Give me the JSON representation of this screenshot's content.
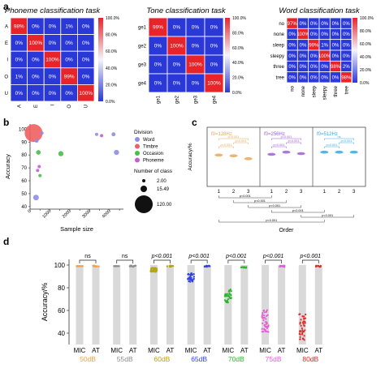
{
  "panel_labels": {
    "a": "a",
    "b": "b",
    "c": "c",
    "d": "d"
  },
  "chart_data": [
    {
      "id": "phoneme",
      "type": "heatmap",
      "title": "Phoneme classification task",
      "row_labels": [
        "A",
        "E",
        "I",
        "O",
        "U"
      ],
      "col_labels": [
        "A",
        "E",
        "I",
        "O",
        "U"
      ],
      "values": [
        [
          "98%",
          "0%",
          "0%",
          "1%",
          "0%"
        ],
        [
          "0%",
          "100%",
          "0%",
          "0%",
          "0%"
        ],
        [
          "0%",
          "0%",
          "100%",
          "0%",
          "0%"
        ],
        [
          "1%",
          "0%",
          "0%",
          "99%",
          "0%"
        ],
        [
          "0%",
          "0%",
          "0%",
          "0%",
          "100%"
        ]
      ],
      "diagonal": [
        98,
        100,
        100,
        99,
        100
      ],
      "colorbar": [
        "100.0%",
        "80.0%",
        "60.0%",
        "40.0%",
        "20.0%",
        "0.0%"
      ],
      "colors": {
        "high": "#e8232a",
        "low": "#2b38d8",
        "grid": "#ffffff"
      }
    },
    {
      "id": "tone",
      "type": "heatmap",
      "title": "Tone classification task",
      "row_labels": [
        "ge1",
        "ge2",
        "ge3",
        "ge4"
      ],
      "col_labels": [
        "ge1",
        "ge2",
        "ge3",
        "ge4"
      ],
      "values": [
        [
          "99%",
          "0%",
          "0%",
          "0%"
        ],
        [
          "0%",
          "100%",
          "0%",
          "0%"
        ],
        [
          "0%",
          "0%",
          "100%",
          "0%"
        ],
        [
          "0%",
          "0%",
          "0%",
          "100%"
        ]
      ],
      "diagonal": [
        99,
        100,
        100,
        100
      ],
      "colorbar": [
        "100.0%",
        "80.0%",
        "60.0%",
        "40.0%",
        "20.0%",
        "0.0%"
      ],
      "colors": {
        "high": "#e8232a",
        "low": "#2b38d8",
        "grid": "#ffffff"
      }
    },
    {
      "id": "word",
      "type": "heatmap",
      "title": "Word classification task",
      "row_labels": [
        "no",
        "none",
        "sleep",
        "sleepy",
        "three",
        "tree"
      ],
      "col_labels": [
        "no",
        "none",
        "sleep",
        "sleepy",
        "three",
        "tree"
      ],
      "values": [
        [
          "97%",
          "0%",
          "0%",
          "0%",
          "0%",
          "0%"
        ],
        [
          "0%",
          "100%",
          "0%",
          "0%",
          "0%",
          "0%"
        ],
        [
          "0%",
          "0%",
          "99%",
          "1%",
          "0%",
          "0%"
        ],
        [
          "0%",
          "0%",
          "0%",
          "100%",
          "0%",
          "0%"
        ],
        [
          "0%",
          "0%",
          "0%",
          "0%",
          "98%",
          "2%"
        ],
        [
          "0%",
          "0%",
          "0%",
          "0%",
          "0%",
          "98%"
        ]
      ],
      "diagonal": [
        97,
        100,
        99,
        100,
        98,
        98
      ],
      "colorbar": [
        "100.0%",
        "80.0%",
        "60.0%",
        "40.0%",
        "20.0%",
        "0.0%"
      ],
      "colors": {
        "high": "#e8232a",
        "low": "#2b38d8",
        "grid": "#ffffff"
      }
    },
    {
      "id": "bubble",
      "type": "scatter",
      "xlabel": "Sample size",
      "ylabel": "Accuracy",
      "xticks": [
        "0",
        "500",
        "1000",
        "1500",
        "2000",
        "2500",
        "3000",
        "3500",
        "4000",
        "4500"
      ],
      "yticks": [
        "40",
        "50",
        "60",
        "70",
        "80",
        "90",
        "100"
      ],
      "xlim": [
        0,
        4700
      ],
      "ylim": [
        38,
        104
      ],
      "legend_title": "Division",
      "legend": [
        {
          "name": "Word",
          "color": "#8d8ee8"
        },
        {
          "name": "Timbre",
          "color": "#f05f5f"
        },
        {
          "name": "Occasion",
          "color": "#4bbd4b"
        },
        {
          "name": "Phoneme",
          "color": "#c15fd3"
        }
      ],
      "size_legend_title": "Number of class",
      "size_legend": [
        "2.00",
        "15.49",
        "120.00"
      ],
      "points": [
        {
          "x": 180,
          "y": 97,
          "size": 120,
          "color": "#f05f5f"
        },
        {
          "x": 600,
          "y": 97,
          "size": 4,
          "color": "#8d8ee8"
        },
        {
          "x": 330,
          "y": 91,
          "size": 6,
          "color": "#8d8ee8"
        },
        {
          "x": 420,
          "y": 82,
          "size": 8,
          "color": "#4bbd4b"
        },
        {
          "x": 1550,
          "y": 81,
          "size": 10,
          "color": "#4bbd4b"
        },
        {
          "x": 460,
          "y": 71,
          "size": 4,
          "color": "#c15fd3"
        },
        {
          "x": 380,
          "y": 68,
          "size": 3,
          "color": "#c15fd3"
        },
        {
          "x": 500,
          "y": 64,
          "size": 3,
          "color": "#4bbd4b"
        },
        {
          "x": 3350,
          "y": 96,
          "size": 4,
          "color": "#8d8ee8"
        },
        {
          "x": 3600,
          "y": 95,
          "size": 3,
          "color": "#c15fd3"
        },
        {
          "x": 4200,
          "y": 96,
          "size": 6,
          "color": "#8d8ee8"
        },
        {
          "x": 4350,
          "y": 82,
          "size": 10,
          "color": "#8d8ee8"
        },
        {
          "x": 300,
          "y": 47,
          "size": 12,
          "color": "#8d8ee8"
        }
      ]
    },
    {
      "id": "order",
      "type": "scatter",
      "xlabel": "Order",
      "ylabel": "Accuracy/%",
      "groups": [
        {
          "label": "f0=128Hz",
          "sub": "0",
          "color": "#e8a75a",
          "values": [
            93,
            92,
            88
          ],
          "brackets": [
            "p<0.001",
            "p<0.001",
            "p<0.001"
          ]
        },
        {
          "label": "f0=256Hz",
          "sub": "0",
          "color": "#9b5fd3",
          "values": [
            94,
            97,
            95
          ],
          "brackets": [
            "p<0.001",
            "p<0.001",
            "p<0.001"
          ]
        },
        {
          "label": "f0=512Hz",
          "sub": "0",
          "color": "#3aa8e0",
          "values": [
            97,
            97,
            97
          ],
          "brackets": [
            "p<0.001",
            "p<0.001",
            "ns"
          ]
        }
      ],
      "xticks": [
        "1",
        "2",
        "3"
      ],
      "bottom_brackets": [
        "p<0.001",
        "p<0.001",
        "p<0.001",
        "p<0.001",
        "p<0.001",
        "p<0.001"
      ]
    },
    {
      "id": "noise",
      "type": "bar",
      "ylabel": "Accuracy/%",
      "yticks": [
        "40",
        "60",
        "80",
        "100"
      ],
      "ylim": [
        30,
        105
      ],
      "pair_labels": [
        "MIC",
        "AT"
      ],
      "groups": [
        {
          "name": "50dB",
          "color": "#f0a04b",
          "sig": "ns",
          "mic": 99,
          "at": 99,
          "mic_spread": 0
        },
        {
          "name": "55dB",
          "color": "#8c8c8c",
          "sig": "ns",
          "mic": 99,
          "at": 99,
          "mic_spread": 0
        },
        {
          "name": "60dB",
          "color": "#b5a414",
          "sig": "p<0.001",
          "mic": 96,
          "at": 99,
          "mic_spread": 2
        },
        {
          "name": "65dB",
          "color": "#3344d8",
          "sig": "p<0.001",
          "mic": 89,
          "at": 99,
          "mic_spread": 4
        },
        {
          "name": "70dB",
          "color": "#2cb52c",
          "sig": "p<0.001",
          "mic": 73,
          "at": 98,
          "mic_spread": 6
        },
        {
          "name": "75dB",
          "color": "#e85ad8",
          "sig": "p<0.001",
          "mic": 51,
          "at": 99,
          "mic_spread": 10
        },
        {
          "name": "80dB",
          "color": "#e02828",
          "sig": "p<0.001",
          "mic": 45,
          "at": 99,
          "mic_spread": 12
        }
      ]
    }
  ]
}
